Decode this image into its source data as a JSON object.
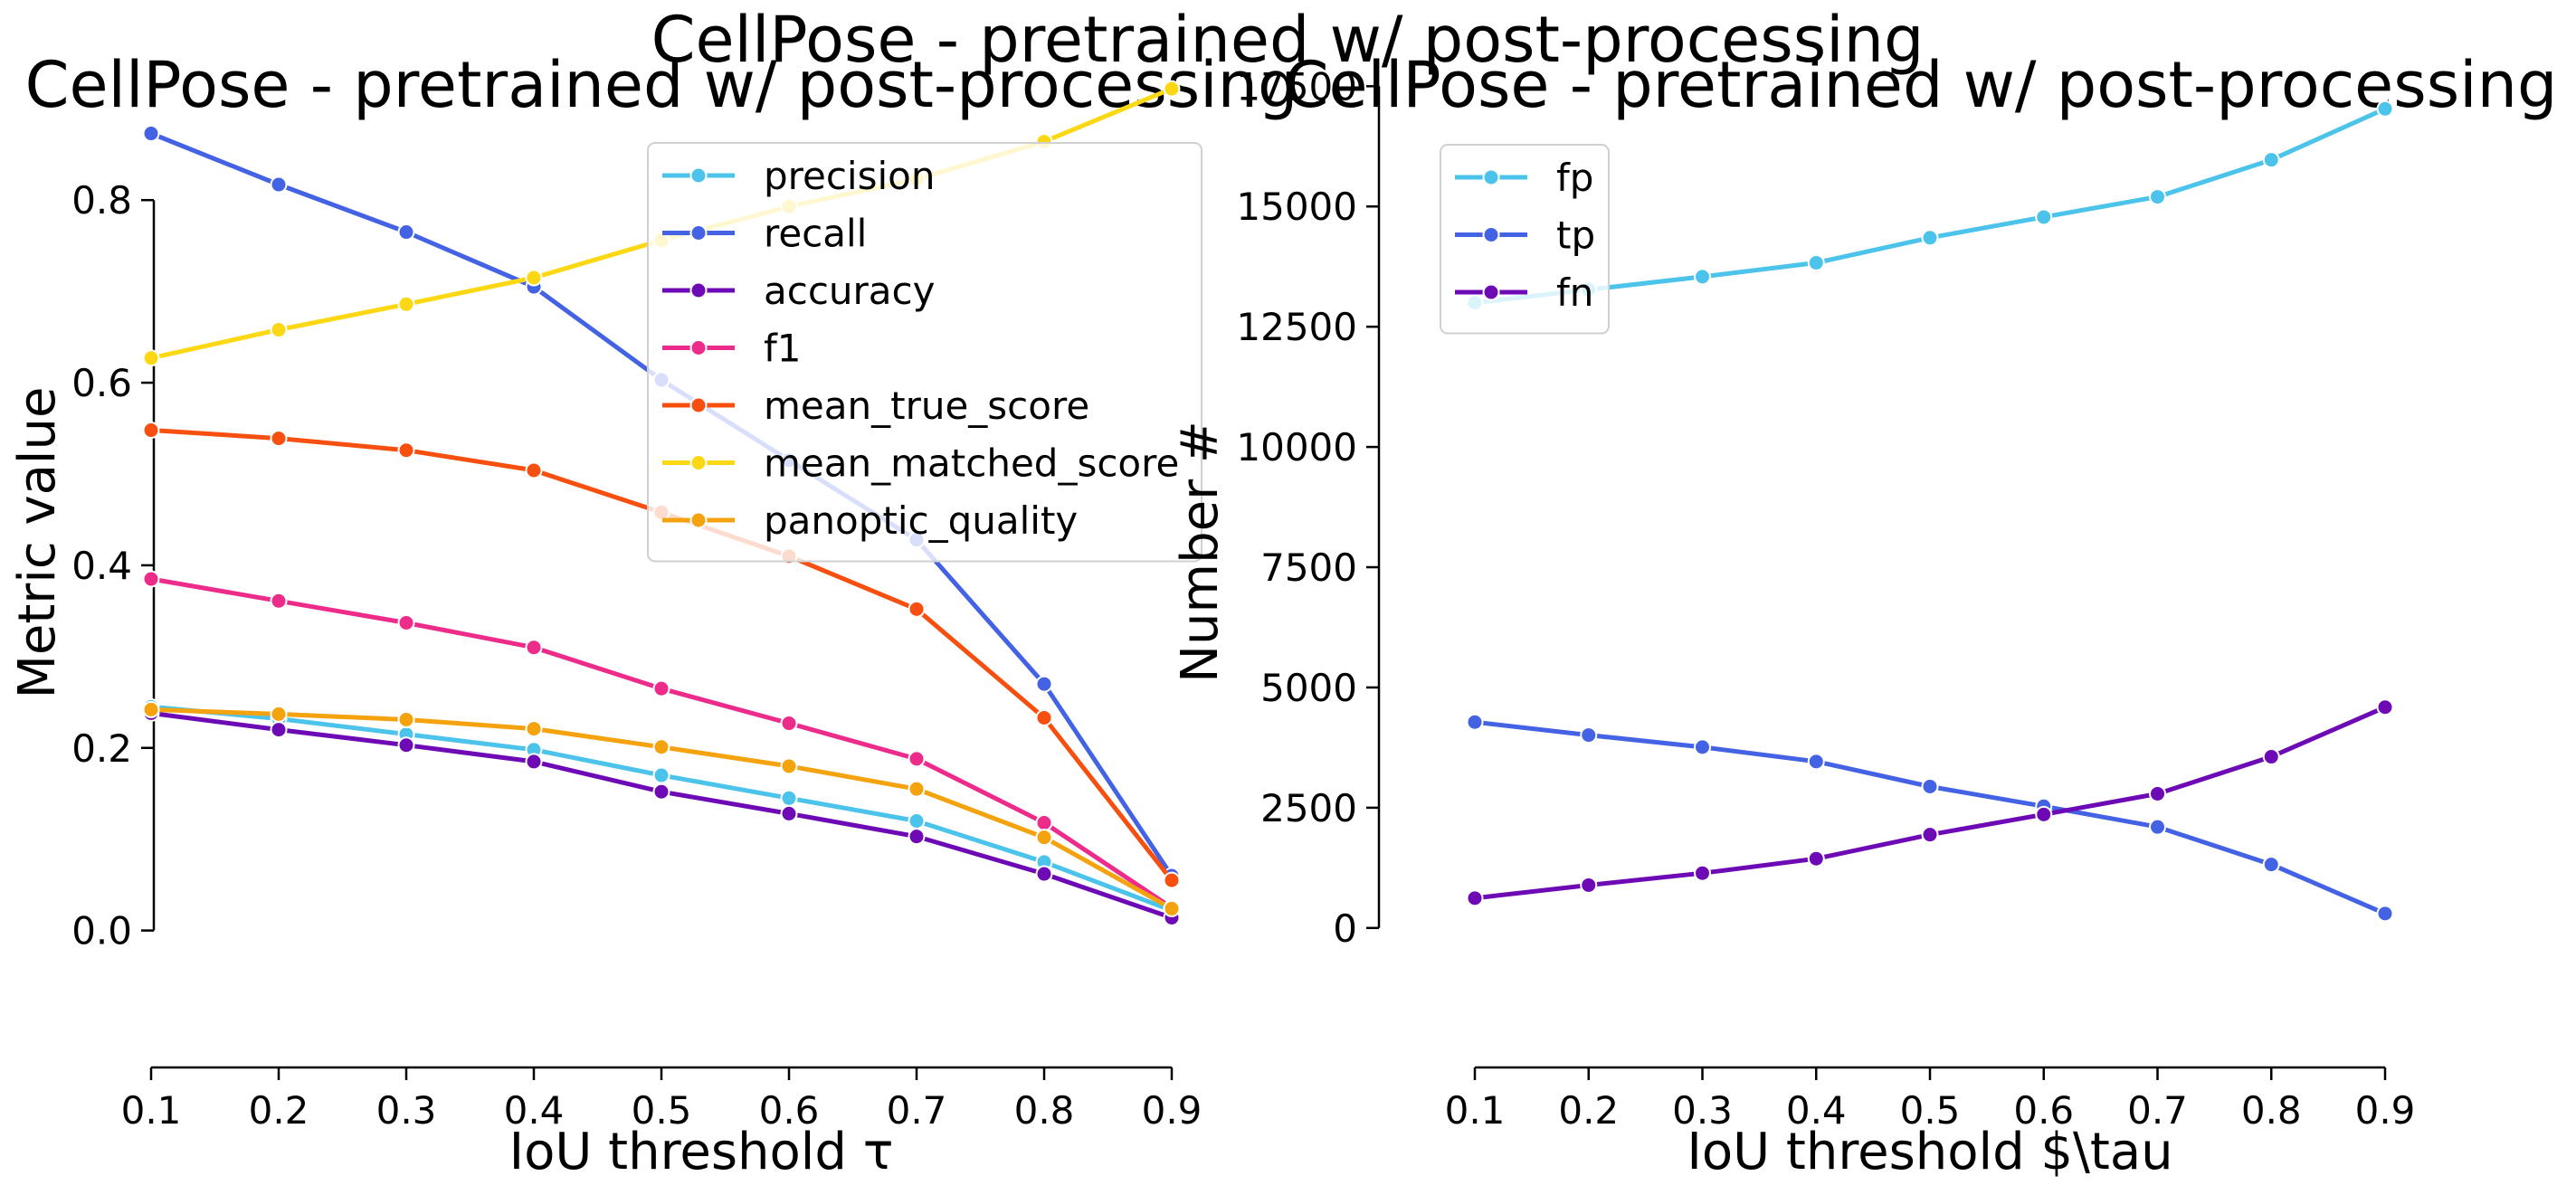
{
  "suptitle": "CellPose - pretrained w/ post-processing",
  "chart_data": [
    {
      "type": "line",
      "title": "CellPose - pretrained w/ post-processing",
      "xlabel": "IoU threshold τ",
      "ylabel": "Metric value",
      "x": [
        0.1,
        0.2,
        0.3,
        0.4,
        0.5,
        0.6,
        0.7,
        0.8,
        0.9
      ],
      "xticks": [
        "0.1",
        "0.2",
        "0.3",
        "0.4",
        "0.5",
        "0.6",
        "0.7",
        "0.8",
        "0.9"
      ],
      "yticks": [
        0.0,
        0.2,
        0.4,
        0.6,
        0.8
      ],
      "ytick_labels": [
        "0.0",
        "0.2",
        "0.4",
        "0.6",
        "0.8"
      ],
      "ylim": [
        -0.15,
        0.93
      ],
      "grid": false,
      "legend_position": "top-right",
      "series": [
        {
          "name": "precision",
          "color": "#4cc3ea",
          "values": [
            0.245,
            0.232,
            0.215,
            0.198,
            0.17,
            0.145,
            0.12,
            0.075,
            0.022
          ]
        },
        {
          "name": "recall",
          "color": "#4362e4",
          "values": [
            0.873,
            0.817,
            0.765,
            0.705,
            0.603,
            0.515,
            0.428,
            0.27,
            0.06
          ]
        },
        {
          "name": "accuracy",
          "color": "#6e0ab5",
          "values": [
            0.238,
            0.22,
            0.203,
            0.185,
            0.152,
            0.128,
            0.103,
            0.062,
            0.014
          ]
        },
        {
          "name": "f1",
          "color": "#ed2b8a",
          "values": [
            0.385,
            0.361,
            0.337,
            0.31,
            0.265,
            0.227,
            0.188,
            0.118,
            0.025
          ]
        },
        {
          "name": "mean_true_score",
          "color": "#f64f10",
          "values": [
            0.548,
            0.539,
            0.526,
            0.504,
            0.458,
            0.41,
            0.352,
            0.233,
            0.055
          ]
        },
        {
          "name": "mean_matched_score",
          "color": "#fcd814",
          "values": [
            0.627,
            0.658,
            0.686,
            0.715,
            0.756,
            0.793,
            0.823,
            0.864,
            0.922
          ]
        },
        {
          "name": "panoptic_quality",
          "color": "#f4a20d",
          "values": [
            0.242,
            0.237,
            0.231,
            0.221,
            0.201,
            0.18,
            0.155,
            0.102,
            0.024
          ]
        }
      ]
    },
    {
      "type": "line",
      "title": "CellPose - pretrained w/ post-processing",
      "xlabel": "IoU threshold $\\tau",
      "ylabel": "Number #",
      "x": [
        0.1,
        0.2,
        0.3,
        0.4,
        0.5,
        0.6,
        0.7,
        0.8,
        0.9
      ],
      "xticks": [
        "0.1",
        "0.2",
        "0.3",
        "0.4",
        "0.5",
        "0.6",
        "0.7",
        "0.8",
        "0.9"
      ],
      "yticks": [
        0,
        2500,
        5000,
        7500,
        10000,
        12500,
        15000,
        17500
      ],
      "ytick_labels": [
        "0",
        "2500",
        "5000",
        "7500",
        "10000",
        "12500",
        "15000",
        "17500"
      ],
      "ylim": [
        -2900,
        17600
      ],
      "grid": false,
      "legend_position": "top-left",
      "series": [
        {
          "name": "fp",
          "color": "#4cc3ea",
          "values": [
            13000,
            13270,
            13540,
            13830,
            14350,
            14780,
            15200,
            15970,
            17030
          ]
        },
        {
          "name": "tp",
          "color": "#4362e4",
          "values": [
            4280,
            4010,
            3760,
            3460,
            2940,
            2530,
            2100,
            1320,
            300
          ]
        },
        {
          "name": "fn",
          "color": "#6e0ab5",
          "values": [
            620,
            890,
            1140,
            1440,
            1940,
            2360,
            2790,
            3560,
            4590
          ]
        }
      ]
    }
  ]
}
